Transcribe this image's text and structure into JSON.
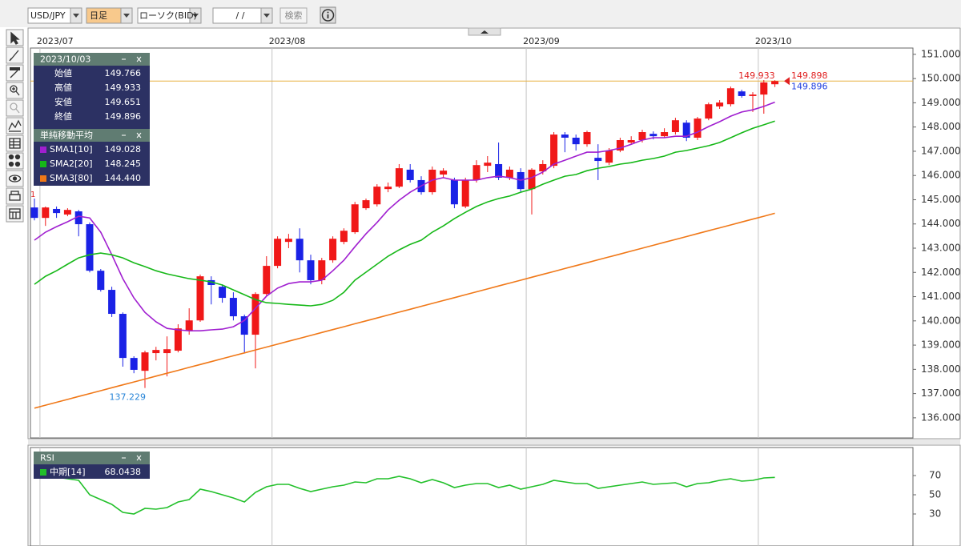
{
  "toolbar": {
    "symbol": "USD/JPY",
    "period": "日足",
    "chart_kind": "ローソク(BID)",
    "date": "/  /",
    "search": "検索"
  },
  "chart_data": [
    {
      "type": "candlestick",
      "categories": [
        null,
        "2023/07",
        null,
        null,
        null,
        null,
        null,
        null,
        null,
        null,
        null,
        null,
        null,
        null,
        null,
        null,
        null,
        null,
        null,
        null,
        null,
        null,
        "2023/08",
        null,
        null,
        null,
        null,
        null,
        null,
        null,
        null,
        null,
        null,
        null,
        null,
        null,
        null,
        null,
        null,
        null,
        null,
        null,
        null,
        null,
        null,
        "2023/09",
        null,
        null,
        null,
        null,
        null,
        null,
        null,
        null,
        null,
        null,
        null,
        null,
        null,
        null,
        null,
        null,
        null,
        null,
        null,
        null,
        "2023/10",
        null
      ],
      "open": [
        144.68,
        144.25,
        144.62,
        144.39,
        144.52,
        143.99,
        142.07,
        141.28,
        140.29,
        138.47,
        137.94,
        138.67,
        138.67,
        138.77,
        139.59,
        140.02,
        141.68,
        141.41,
        140.95,
        140.19,
        139.43,
        141.11,
        142.27,
        143.26,
        143.39,
        142.5,
        141.68,
        142.5,
        143.26,
        143.66,
        144.65,
        144.81,
        145.44,
        145.54,
        146.24,
        145.81,
        145.31,
        146.04,
        145.81,
        144.72,
        145.81,
        146.4,
        146.47,
        145.91,
        146.14,
        145.44,
        146.17,
        146.4,
        147.69,
        147.56,
        147.29,
        146.73,
        146.53,
        147.03,
        147.36,
        147.46,
        147.72,
        147.62,
        147.79,
        148.18,
        147.56,
        148.35,
        148.85,
        148.94,
        149.47,
        149.28,
        149.34,
        149.766
      ],
      "high": [
        145.05,
        144.72,
        144.72,
        144.65,
        144.58,
        144.06,
        142.14,
        141.41,
        140.35,
        138.54,
        138.77,
        138.93,
        139.36,
        139.86,
        140.52,
        141.91,
        141.84,
        141.51,
        141.18,
        140.26,
        141.18,
        142.67,
        143.49,
        143.59,
        143.82,
        142.73,
        142.6,
        143.49,
        143.82,
        144.91,
        145.05,
        145.64,
        145.71,
        146.47,
        146.47,
        145.97,
        146.37,
        146.3,
        145.91,
        145.91,
        146.63,
        146.8,
        147.36,
        146.37,
        146.3,
        146.3,
        146.63,
        147.79,
        147.79,
        147.69,
        147.85,
        147.29,
        147.13,
        147.56,
        147.62,
        147.89,
        147.82,
        147.95,
        148.38,
        148.28,
        148.42,
        149.01,
        149.11,
        149.67,
        149.54,
        149.44,
        149.94,
        149.933
      ],
      "low": [
        144.15,
        143.92,
        144.25,
        144.32,
        143.49,
        142.0,
        141.21,
        140.16,
        138.11,
        137.84,
        137.229,
        138.37,
        137.71,
        138.7,
        139.43,
        139.96,
        140.68,
        140.75,
        140.02,
        138.7,
        138.04,
        141.02,
        142.17,
        143.0,
        142.0,
        141.51,
        141.51,
        142.4,
        143.16,
        143.59,
        144.58,
        144.72,
        145.31,
        145.48,
        145.71,
        145.21,
        145.21,
        145.91,
        144.65,
        144.65,
        145.71,
        146.14,
        145.81,
        145.81,
        145.31,
        144.39,
        146.04,
        146.3,
        146.96,
        147.03,
        147.19,
        145.81,
        146.43,
        146.96,
        147.29,
        147.36,
        147.49,
        147.56,
        147.69,
        147.42,
        147.46,
        148.28,
        148.75,
        148.85,
        149.21,
        148.62,
        148.55,
        149.651
      ],
      "close": [
        144.25,
        144.68,
        144.45,
        144.58,
        143.99,
        142.07,
        141.28,
        140.29,
        138.47,
        137.98,
        138.7,
        138.8,
        138.83,
        139.69,
        140.02,
        141.84,
        141.48,
        140.95,
        140.19,
        139.43,
        141.11,
        142.27,
        143.39,
        143.39,
        142.5,
        141.68,
        142.5,
        143.39,
        143.72,
        144.81,
        144.98,
        145.54,
        145.54,
        146.3,
        145.81,
        145.31,
        146.24,
        146.2,
        144.81,
        145.81,
        146.43,
        146.53,
        145.91,
        146.24,
        145.44,
        146.24,
        146.47,
        147.69,
        147.56,
        147.29,
        147.79,
        146.6,
        147.03,
        147.46,
        147.46,
        147.79,
        147.62,
        147.79,
        148.28,
        147.56,
        148.35,
        148.94,
        149.01,
        149.6,
        149.28,
        149.34,
        149.84,
        149.896
      ],
      "up_color": "#f01818",
      "down_color": "#1a22e6",
      "series": [
        {
          "name": "SMA1[10]",
          "color": "#a01fd0",
          "latest_label": "149.028",
          "values": [
            143.33,
            143.66,
            143.89,
            144.09,
            144.32,
            144.25,
            143.66,
            142.73,
            141.74,
            140.95,
            140.35,
            139.96,
            139.69,
            139.63,
            139.59,
            139.59,
            139.63,
            139.66,
            139.76,
            140.02,
            140.52,
            141.02,
            141.35,
            141.54,
            141.61,
            141.61,
            141.68,
            142.07,
            142.5,
            143.06,
            143.59,
            144.06,
            144.58,
            144.98,
            145.31,
            145.57,
            145.81,
            145.91,
            145.81,
            145.81,
            145.81,
            145.91,
            145.97,
            145.91,
            145.81,
            145.91,
            146.14,
            146.47,
            146.63,
            146.8,
            146.96,
            146.96,
            147.03,
            147.13,
            147.29,
            147.46,
            147.56,
            147.56,
            147.62,
            147.62,
            147.79,
            148.02,
            148.22,
            148.45,
            148.62,
            148.71,
            148.85,
            149.028
          ]
        },
        {
          "name": "SMA2[20]",
          "color": "#16b818",
          "latest_label": "148.245",
          "values": [
            141.51,
            141.84,
            142.07,
            142.34,
            142.6,
            142.73,
            142.8,
            142.73,
            142.6,
            142.4,
            142.24,
            142.07,
            141.94,
            141.84,
            141.74,
            141.68,
            141.61,
            141.48,
            141.28,
            141.08,
            140.88,
            140.75,
            140.72,
            140.68,
            140.65,
            140.62,
            140.68,
            140.85,
            141.18,
            141.68,
            142.01,
            142.34,
            142.67,
            142.93,
            143.16,
            143.33,
            143.66,
            143.92,
            144.22,
            144.48,
            144.72,
            144.91,
            145.05,
            145.15,
            145.31,
            145.44,
            145.64,
            145.81,
            145.97,
            146.04,
            146.2,
            146.3,
            146.37,
            146.47,
            146.53,
            146.63,
            146.7,
            146.8,
            146.96,
            147.03,
            147.13,
            147.23,
            147.36,
            147.56,
            147.76,
            147.95,
            148.09,
            148.245
          ]
        },
        {
          "name": "SMA3[80]",
          "color": "#f07818",
          "latest_label": "144.440",
          "values": [
            136.4,
            136.52,
            136.64,
            136.76,
            136.88,
            137.0,
            137.12,
            137.24,
            137.36,
            137.48,
            137.6,
            137.72,
            137.84,
            137.96,
            138.08,
            138.2,
            138.32,
            138.44,
            138.56,
            138.68,
            138.8,
            138.92,
            139.04,
            139.16,
            139.28,
            139.4,
            139.52,
            139.64,
            139.76,
            139.88,
            140.0,
            140.12,
            140.24,
            140.36,
            140.48,
            140.6,
            140.72,
            140.84,
            140.96,
            141.08,
            141.2,
            141.32,
            141.44,
            141.56,
            141.68,
            141.8,
            141.92,
            142.04,
            142.16,
            142.28,
            142.4,
            142.52,
            142.64,
            142.76,
            142.88,
            143.0,
            143.12,
            143.24,
            143.36,
            143.48,
            143.6,
            143.72,
            143.84,
            143.96,
            144.08,
            144.2,
            144.32,
            144.44
          ]
        }
      ],
      "ylim": [
        135.17,
        151.26
      ],
      "yticks": [
        {
          "value": 136,
          "label": "136.000"
        },
        {
          "value": 137,
          "label": "137.000"
        },
        {
          "value": 138,
          "label": "138.000"
        },
        {
          "value": 139,
          "label": "139.000"
        },
        {
          "value": 140,
          "label": "140.000"
        },
        {
          "value": 141,
          "label": "141.000"
        },
        {
          "value": 142,
          "label": "142.000"
        },
        {
          "value": 143,
          "label": "143.000"
        },
        {
          "value": 144,
          "label": "144.000"
        },
        {
          "value": 145,
          "label": "145.000"
        },
        {
          "value": 146,
          "label": "146.000"
        },
        {
          "value": 147,
          "label": "147.000"
        },
        {
          "value": 148,
          "label": "148.000"
        },
        {
          "value": 149,
          "label": "149.000"
        },
        {
          "value": 150,
          "label": "150.000"
        },
        {
          "value": 151,
          "label": "151.000"
        }
      ],
      "info_date": "2023/10/03",
      "ohlc_labels": [
        "始値",
        "高値",
        "安値",
        "終値"
      ],
      "indicator_title": "単純移動平均",
      "ask": 149.898,
      "price_line_color": "#e8b040",
      "marker_text": "1"
    },
    {
      "type": "line",
      "title": "RSI",
      "series": [
        {
          "name": "中期[14]",
          "color": "#22c02a",
          "values": [
            71.7,
            70.0,
            68.3,
            66.7,
            65.0,
            50.0,
            45.0,
            40.0,
            31.7,
            30.0,
            35.8,
            35.0,
            36.7,
            42.5,
            45.0,
            55.8,
            53.3,
            50.0,
            46.7,
            42.5,
            52.5,
            58.3,
            60.8,
            60.8,
            56.7,
            53.3,
            55.8,
            58.3,
            60.0,
            63.3,
            62.5,
            66.7,
            66.7,
            69.2,
            66.7,
            62.5,
            65.8,
            62.5,
            57.5,
            60.0,
            61.7,
            61.7,
            57.5,
            60.0,
            55.8,
            58.3,
            60.8,
            65.0,
            63.3,
            61.7,
            61.7,
            56.7,
            58.3,
            60.0,
            61.7,
            63.3,
            60.8,
            61.7,
            62.5,
            58.3,
            61.7,
            62.5,
            65.0,
            66.7,
            64.2,
            65.0,
            67.5,
            68.0438
          ]
        }
      ],
      "ylim": [
        0,
        100
      ],
      "yticks": [
        30,
        50,
        70
      ]
    }
  ]
}
